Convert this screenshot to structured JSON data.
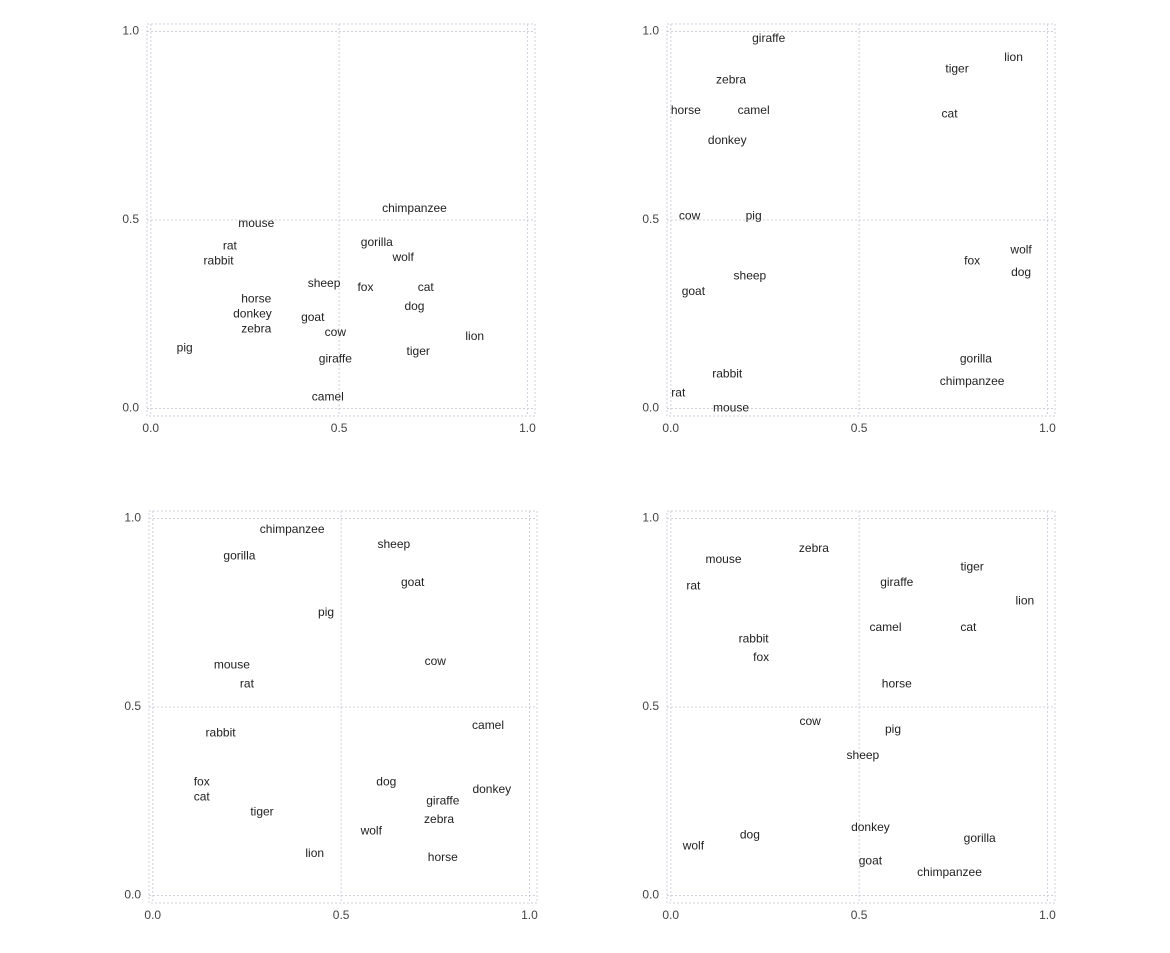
{
  "chart_data": [
    {
      "type": "scatter",
      "labels": [
        "mouse",
        "rat",
        "rabbit",
        "horse",
        "donkey",
        "zebra",
        "pig",
        "sheep",
        "goat",
        "cow",
        "giraffe",
        "camel",
        "chimpanzee",
        "gorilla",
        "wolf",
        "fox",
        "cat",
        "dog",
        "tiger",
        "lion"
      ],
      "x": [
        0.28,
        0.21,
        0.18,
        0.28,
        0.27,
        0.28,
        0.09,
        0.46,
        0.43,
        0.49,
        0.49,
        0.47,
        0.7,
        0.6,
        0.67,
        0.57,
        0.73,
        0.7,
        0.71,
        0.86
      ],
      "y": [
        0.49,
        0.43,
        0.39,
        0.29,
        0.25,
        0.21,
        0.16,
        0.33,
        0.24,
        0.2,
        0.13,
        0.03,
        0.53,
        0.44,
        0.4,
        0.32,
        0.32,
        0.27,
        0.15,
        0.19
      ],
      "xlim": [
        -0.01,
        1.02
      ],
      "ylim": [
        -0.02,
        1.02
      ],
      "xticks": [
        {
          "value": 0,
          "label": "0.0"
        },
        {
          "value": 0.5,
          "label": "0.5"
        },
        {
          "value": 1,
          "label": "1.0"
        }
      ],
      "yticks": [
        {
          "value": 0,
          "label": "0.0"
        },
        {
          "value": 0.5,
          "label": "0.5"
        },
        {
          "value": 1,
          "label": "1.0"
        }
      ],
      "grid": true
    },
    {
      "type": "scatter",
      "labels": [
        "giraffe",
        "zebra",
        "horse",
        "camel",
        "donkey",
        "tiger",
        "lion",
        "cat",
        "cow",
        "pig",
        "goat",
        "sheep",
        "wolf",
        "fox",
        "dog",
        "gorilla",
        "chimpanzee",
        "rabbit",
        "rat",
        "mouse"
      ],
      "x": [
        0.26,
        0.16,
        0.04,
        0.22,
        0.15,
        0.76,
        0.91,
        0.74,
        0.05,
        0.22,
        0.06,
        0.21,
        0.93,
        0.8,
        0.93,
        0.81,
        0.8,
        0.15,
        0.02,
        0.16
      ],
      "y": [
        0.98,
        0.87,
        0.79,
        0.79,
        0.71,
        0.9,
        0.93,
        0.78,
        0.51,
        0.51,
        0.31,
        0.35,
        0.42,
        0.39,
        0.36,
        0.13,
        0.07,
        0.09,
        0.04,
        0.0
      ],
      "xlim": [
        -0.01,
        1.02
      ],
      "ylim": [
        -0.02,
        1.02
      ],
      "xticks": [
        {
          "value": 0,
          "label": "0.0"
        },
        {
          "value": 0.5,
          "label": "0.5"
        },
        {
          "value": 1,
          "label": "1.0"
        }
      ],
      "yticks": [
        {
          "value": 0,
          "label": "0.0"
        },
        {
          "value": 0.5,
          "label": "0.5"
        },
        {
          "value": 1,
          "label": "1.0"
        }
      ],
      "grid": true
    },
    {
      "type": "scatter",
      "labels": [
        "chimpanzee",
        "sheep",
        "gorilla",
        "goat",
        "pig",
        "mouse",
        "rat",
        "cow",
        "camel",
        "rabbit",
        "fox",
        "cat",
        "tiger",
        "dog",
        "donkey",
        "giraffe",
        "zebra",
        "wolf",
        "lion",
        "horse"
      ],
      "x": [
        0.37,
        0.64,
        0.23,
        0.69,
        0.46,
        0.21,
        0.25,
        0.75,
        0.89,
        0.18,
        0.13,
        0.13,
        0.29,
        0.62,
        0.9,
        0.77,
        0.76,
        0.58,
        0.43,
        0.77
      ],
      "y": [
        0.97,
        0.93,
        0.9,
        0.83,
        0.75,
        0.61,
        0.56,
        0.62,
        0.45,
        0.43,
        0.3,
        0.26,
        0.22,
        0.3,
        0.28,
        0.25,
        0.2,
        0.17,
        0.11,
        0.1
      ],
      "xlim": [
        -0.01,
        1.02
      ],
      "ylim": [
        -0.02,
        1.02
      ],
      "xticks": [
        {
          "value": 0,
          "label": "0.0"
        },
        {
          "value": 0.5,
          "label": "0.5"
        },
        {
          "value": 1,
          "label": "1.0"
        }
      ],
      "yticks": [
        {
          "value": 0,
          "label": "0.0"
        },
        {
          "value": 0.5,
          "label": "0.5"
        },
        {
          "value": 1,
          "label": "1.0"
        }
      ],
      "grid": true
    },
    {
      "type": "scatter",
      "labels": [
        "zebra",
        "mouse",
        "rat",
        "tiger",
        "giraffe",
        "lion",
        "camel",
        "cat",
        "rabbit",
        "fox",
        "horse",
        "cow",
        "pig",
        "sheep",
        "donkey",
        "gorilla",
        "dog",
        "wolf",
        "goat",
        "chimpanzee"
      ],
      "x": [
        0.38,
        0.14,
        0.06,
        0.8,
        0.6,
        0.94,
        0.57,
        0.79,
        0.22,
        0.24,
        0.6,
        0.37,
        0.59,
        0.51,
        0.53,
        0.82,
        0.21,
        0.06,
        0.53,
        0.74
      ],
      "y": [
        0.92,
        0.89,
        0.82,
        0.87,
        0.83,
        0.78,
        0.71,
        0.71,
        0.68,
        0.63,
        0.56,
        0.46,
        0.44,
        0.37,
        0.18,
        0.15,
        0.16,
        0.13,
        0.09,
        0.06
      ],
      "xlim": [
        -0.01,
        1.02
      ],
      "ylim": [
        -0.02,
        1.02
      ],
      "xticks": [
        {
          "value": 0,
          "label": "0.0"
        },
        {
          "value": 0.5,
          "label": "0.5"
        },
        {
          "value": 1,
          "label": "1.0"
        }
      ],
      "yticks": [
        {
          "value": 0,
          "label": "0.0"
        },
        {
          "value": 0.5,
          "label": "0.5"
        },
        {
          "value": 1,
          "label": "1.0"
        }
      ],
      "grid": true
    }
  ]
}
